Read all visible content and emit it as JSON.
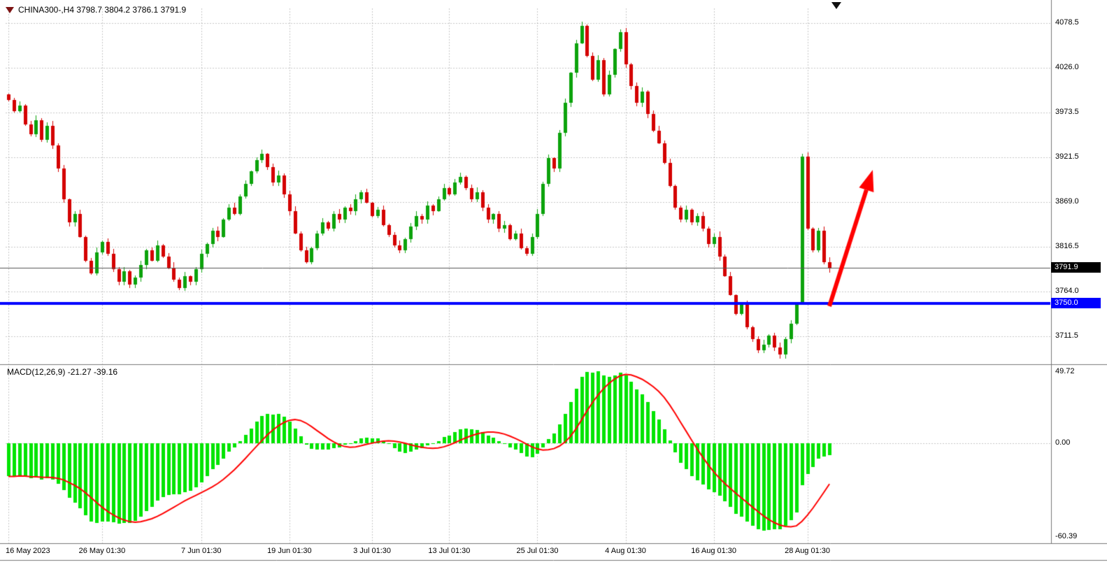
{
  "header": {
    "symbol_line": "CHINA300-,H4  3798.7 3804.2 3786.1 3791.9"
  },
  "chart_data": {
    "type": "candlestick_with_macd",
    "symbol": "CHINA300-",
    "timeframe": "H4",
    "ohlc": {
      "open": 3798.7,
      "high": 3804.2,
      "low": 3786.1,
      "close": 3791.9
    },
    "y_axis": {
      "ticks": [
        "4078.5",
        "4026.0",
        "3973.5",
        "3921.5",
        "3869.0",
        "3816.5",
        "3764.0",
        "3711.5"
      ]
    },
    "current_price_label": "3791.9",
    "support_line": {
      "price": 3750.0,
      "label": "3750.0",
      "color": "#0000ff"
    },
    "x_axis": {
      "ticks": [
        {
          "label": "16 May 2023",
          "index": 0
        },
        {
          "label": "26 May 01:30",
          "index": 17
        },
        {
          "label": "7 Jun 01:30",
          "index": 35
        },
        {
          "label": "19 Jun 01:30",
          "index": 51
        },
        {
          "label": "3 Jul 01:30",
          "index": 66
        },
        {
          "label": "13 Jul 01:30",
          "index": 80
        },
        {
          "label": "25 Jul 01:30",
          "index": 96
        },
        {
          "label": "4 Aug 01:30",
          "index": 112
        },
        {
          "label": "16 Aug 01:30",
          "index": 128
        },
        {
          "label": "28 Aug 01:30",
          "index": 145
        }
      ]
    },
    "first_open": 3995,
    "closes": [
      3988,
      3975,
      3982,
      3960,
      3948,
      3965,
      3942,
      3958,
      3935,
      3908,
      3872,
      3845,
      3855,
      3828,
      3800,
      3785,
      3810,
      3822,
      3808,
      3790,
      3775,
      3788,
      3772,
      3780,
      3795,
      3812,
      3800,
      3818,
      3805,
      3792,
      3778,
      3768,
      3782,
      3775,
      3790,
      3808,
      3820,
      3835,
      3828,
      3848,
      3862,
      3855,
      3875,
      3890,
      3905,
      3918,
      3925,
      3910,
      3892,
      3900,
      3878,
      3858,
      3832,
      3812,
      3798,
      3815,
      3832,
      3845,
      3838,
      3855,
      3848,
      3862,
      3858,
      3872,
      3880,
      3868,
      3852,
      3860,
      3842,
      3830,
      3818,
      3812,
      3825,
      3840,
      3852,
      3848,
      3865,
      3858,
      3872,
      3885,
      3878,
      3892,
      3898,
      3885,
      3872,
      3880,
      3862,
      3848,
      3855,
      3838,
      3842,
      3825,
      3832,
      3815,
      3808,
      3828,
      3855,
      3890,
      3920,
      3908,
      3950,
      3985,
      4020,
      4055,
      4075,
      4040,
      4012,
      4035,
      3995,
      4018,
      4048,
      4068,
      4030,
      4005,
      3985,
      3998,
      3972,
      3952,
      3938,
      3915,
      3888,
      3862,
      3848,
      3860,
      3845,
      3852,
      3838,
      3820,
      3828,
      3805,
      3782,
      3760,
      3738,
      3748,
      3722,
      3708,
      3695,
      3702,
      3712,
      3698,
      3690,
      3708,
      3726,
      3750,
      3922,
      3838,
      3812,
      3835,
      3798.7,
      3791.9
    ],
    "colors": {
      "up": "#0ca30c",
      "down": "#d40000",
      "hist": "#00e400",
      "signal": "#ff0000",
      "grid": "#8f8f8f",
      "price_line": "#555555",
      "support": "#0000ff"
    },
    "macd": {
      "label": "MACD(12,26,9) -21.27 -39.16",
      "fast": 12,
      "slow": 26,
      "signal_period": 9,
      "macd_value": -21.27,
      "signal_value": -39.16,
      "y_ticks": [
        "49.72",
        "0.00",
        "-60.39"
      ]
    },
    "annotation_arrow": {
      "from": [
        1186,
        438
      ],
      "to": [
        1248,
        243
      ],
      "color": "#ff0000"
    }
  }
}
